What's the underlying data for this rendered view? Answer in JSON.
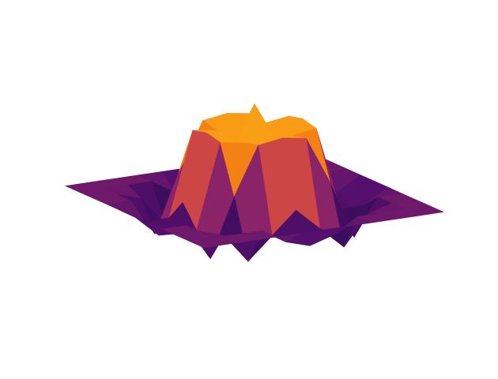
{
  "chart_data": {
    "type": "surface",
    "colormap": "inferno",
    "axis": false,
    "x": [
      -1,
      -0.8,
      -0.6,
      -0.4,
      -0.2,
      0,
      0.2,
      0.4,
      0.6,
      0.8,
      1
    ],
    "y": [
      -1,
      -0.8,
      -0.6,
      -0.4,
      -0.2,
      0,
      0.2,
      0.4,
      0.6,
      0.8,
      1
    ],
    "zlim": [
      -0.6,
      1.3
    ],
    "z": [
      [
        0,
        0,
        0,
        0,
        0,
        0,
        0,
        0,
        0,
        0,
        0
      ],
      [
        0,
        0,
        0,
        0,
        -0.2,
        -0.3,
        -0.2,
        0,
        0,
        0,
        0
      ],
      [
        0,
        0,
        -0.1,
        -0.5,
        -0.2,
        0.1,
        -0.2,
        -0.5,
        -0.1,
        0,
        0
      ],
      [
        0,
        0,
        -0.5,
        0.3,
        0.95,
        1.0,
        0.95,
        0.3,
        -0.5,
        0,
        0
      ],
      [
        0,
        -0.2,
        -0.2,
        0.95,
        0.9,
        0.7,
        0.9,
        0.95,
        -0.2,
        -0.2,
        0
      ],
      [
        0,
        -0.3,
        0.1,
        1.0,
        0.7,
        1.3,
        0.7,
        1.0,
        0.1,
        -0.3,
        0
      ],
      [
        0,
        -0.2,
        -0.2,
        0.95,
        0.9,
        0.7,
        0.9,
        0.95,
        -0.2,
        -0.2,
        0
      ],
      [
        0,
        0,
        -0.5,
        0.3,
        0.95,
        1.0,
        0.95,
        0.3,
        -0.5,
        0,
        0
      ],
      [
        0,
        0,
        -0.1,
        -0.5,
        -0.2,
        0.1,
        -0.2,
        -0.5,
        -0.1,
        0,
        0
      ],
      [
        0,
        0,
        0,
        0,
        -0.2,
        -0.3,
        -0.2,
        0,
        0,
        0,
        0
      ],
      [
        0,
        0,
        0,
        0,
        0,
        0,
        0,
        0,
        0,
        0,
        0
      ]
    ]
  }
}
